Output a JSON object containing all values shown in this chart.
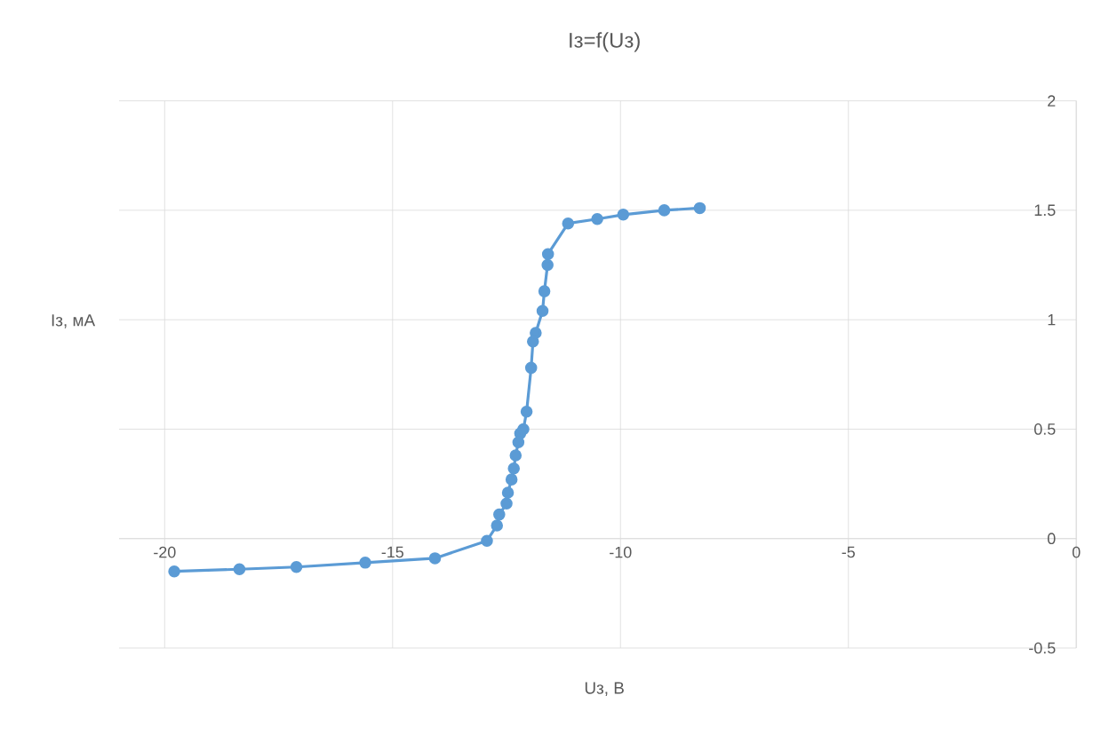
{
  "chart_data": {
    "type": "line",
    "title": "Iз=f(Uз)",
    "xlabel": "Uз, В",
    "ylabel": "Iз, мА",
    "x": [
      -19.79,
      -18.36,
      -17.11,
      -15.6,
      -14.07,
      -12.93,
      -12.71,
      -12.66,
      -12.5,
      -12.47,
      -12.39,
      -12.34,
      -12.3,
      -12.24,
      -12.2,
      -12.13,
      -12.06,
      -11.96,
      -11.92,
      -11.86,
      -11.71,
      -11.67,
      -11.6,
      -11.59,
      -11.15,
      -10.51,
      -9.94,
      -9.04,
      -8.26
    ],
    "values": [
      -0.15,
      -0.14,
      -0.13,
      -0.11,
      -0.09,
      -0.01,
      0.06,
      0.11,
      0.16,
      0.21,
      0.27,
      0.32,
      0.38,
      0.44,
      0.48,
      0.5,
      0.58,
      0.78,
      0.9,
      0.94,
      1.04,
      1.13,
      1.25,
      1.3,
      1.44,
      1.46,
      1.48,
      1.5,
      1.51
    ],
    "color": "#5b9bd5",
    "marker": "circle",
    "grid": true,
    "xlim": [
      -21,
      0
    ],
    "ylim": [
      -0.5,
      2
    ],
    "xticks": [
      -20,
      -15,
      -10,
      -5,
      0
    ],
    "yticks": [
      -0.5,
      0,
      0.5,
      1,
      1.5,
      2
    ]
  }
}
